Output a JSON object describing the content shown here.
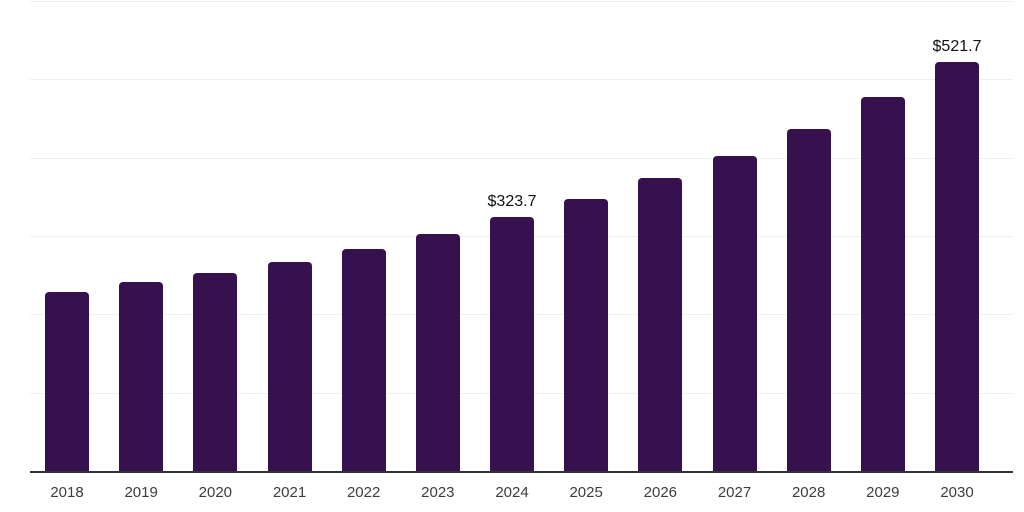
{
  "chart_data": {
    "type": "bar",
    "title": "",
    "xlabel": "",
    "ylabel": "",
    "categories": [
      "2018",
      "2019",
      "2020",
      "2021",
      "2022",
      "2023",
      "2024",
      "2025",
      "2026",
      "2027",
      "2028",
      "2029",
      "2030"
    ],
    "values": [
      227.9,
      241.7,
      253.2,
      267.2,
      283.8,
      302.9,
      323.7,
      347.4,
      374.1,
      402.1,
      436.5,
      477.2,
      521.7
    ],
    "annotations": [
      {
        "index": 6,
        "text": "$323.7"
      },
      {
        "index": 12,
        "text": "$521.7"
      }
    ],
    "ylim": [
      0,
      600
    ],
    "grid_interval": 100,
    "grid": true,
    "legend": false,
    "y_tick_labels_shown": false,
    "colors": {
      "bar": "#36114D",
      "gridline": "#F0F0F0",
      "axis_line": "#333333",
      "tick_label": "#3D3D3D",
      "data_label": "#111111",
      "background": "#FFFFFF"
    }
  }
}
